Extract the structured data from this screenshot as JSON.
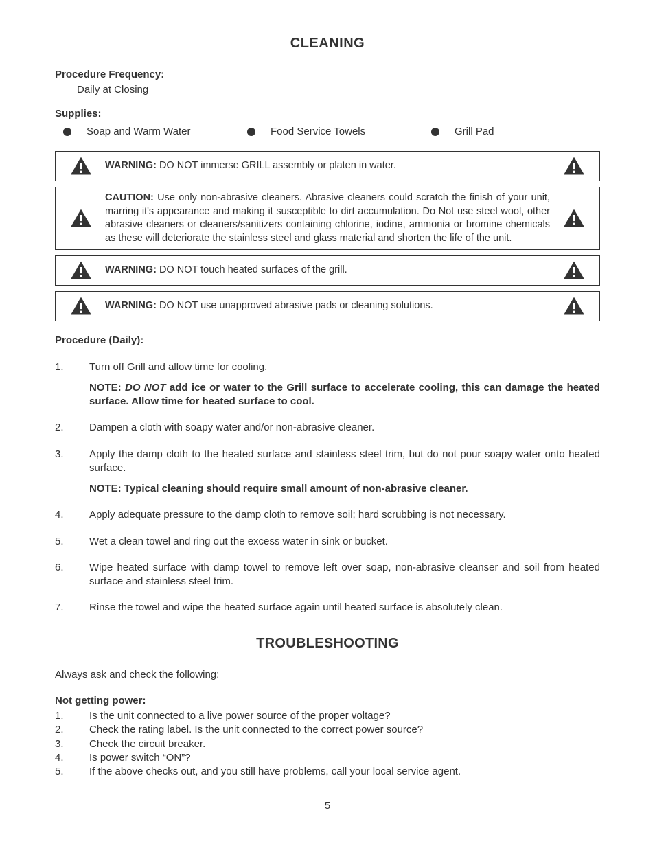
{
  "title": "CLEANING",
  "procedure_frequency": {
    "label": "Procedure Frequency:",
    "value": "Daily at Closing"
  },
  "supplies": {
    "label": "Supplies:",
    "items": [
      "Soap and Warm Water",
      "Food Service Towels",
      "Grill Pad"
    ]
  },
  "warnings": [
    {
      "lead": "WARNING:",
      "text": " DO NOT immerse GRILL assembly or platen in water."
    },
    {
      "lead": "CAUTION:",
      "text": " Use only non-abrasive cleaners. Abrasive cleaners could scratch the finish of your unit, marring it's appearance and making it susceptible to dirt accumulation. Do Not use steel wool, other abrasive cleaners or cleaners/sanitizers containing chlorine, iodine, ammonia or bromine chemicals as these will deteriorate the stainless steel and glass material and shorten the life of the unit."
    },
    {
      "lead": "WARNING:",
      "text": " DO NOT touch heated surfaces of the grill."
    },
    {
      "lead": "WARNING:",
      "text": " DO NOT use unapproved abrasive pads or cleaning solutions."
    }
  ],
  "procedure_daily_label": "Procedure (Daily):",
  "procedure_steps": [
    {
      "num": "1.",
      "text": "Turn off Grill and allow time for cooling.",
      "note_lead": "NOTE: ",
      "note_donot": "DO NOT",
      "note_rest": " add ice or water to the Grill surface to accelerate cooling, this can damage the heated surface.  Allow time for heated surface to cool."
    },
    {
      "num": "2.",
      "text": "Dampen a cloth with soapy water and/or non-abrasive cleaner."
    },
    {
      "num": "3.",
      "text": "Apply the damp cloth to the heated surface and stainless steel trim, but do not pour soapy water onto heated surface.",
      "note_plain": "NOTE: Typical cleaning should require small amount of non-abrasive cleaner."
    },
    {
      "num": "4.",
      "text": "Apply adequate pressure to the damp cloth to remove soil; hard scrubbing is not necessary."
    },
    {
      "num": "5.",
      "text": "Wet a clean towel and ring out the excess water in sink or bucket."
    },
    {
      "num": "6.",
      "text": "Wipe heated surface with damp towel to remove left over soap, non-abrasive cleanser and soil from heated  surface and stainless steel trim."
    },
    {
      "num": "7.",
      "text": "Rinse the towel and wipe the heated surface again until heated surface is absolutely clean."
    }
  ],
  "troubleshooting": {
    "title": "TROUBLESHOOTING",
    "intro": "Always ask and check the following:",
    "section_label": "Not getting power:",
    "items": [
      {
        "num": "1.",
        "text": "Is the unit connected to a live power source of the proper voltage?"
      },
      {
        "num": "2.",
        "text": "Check the rating label. Is the unit connected to the correct power source?"
      },
      {
        "num": "3.",
        "text": "Check the circuit breaker."
      },
      {
        "num": "4.",
        "text": "Is power switch “ON”?"
      },
      {
        "num": "5.",
        "text": "If the above checks out, and you still have problems, call your local service agent."
      }
    ]
  },
  "page_number": "5",
  "colors": {
    "text": "#333333",
    "background": "#ffffff",
    "border": "#333333",
    "icon_fill": "#333333"
  }
}
